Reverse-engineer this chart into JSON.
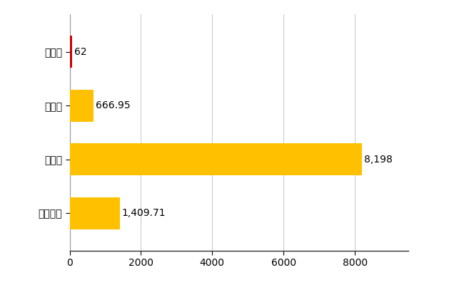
{
  "categories": [
    "全国平均",
    "県最大",
    "県平均",
    "小川村"
  ],
  "values": [
    1409.71,
    8198,
    666.95,
    62
  ],
  "bar_colors": [
    "#FFC000",
    "#FFC000",
    "#FFC000",
    "#CC0000"
  ],
  "value_labels": [
    "1,409.71",
    "8,198",
    "666.95",
    "62"
  ],
  "xlim": [
    0,
    9500
  ],
  "xticks": [
    0,
    2000,
    4000,
    6000,
    8000
  ],
  "xtick_labels": [
    "0",
    "2000",
    "4000",
    "6000",
    "8000"
  ],
  "background_color": "#FFFFFF",
  "grid_color": "#CCCCCC",
  "label_fontsize": 11,
  "tick_fontsize": 10,
  "bar_height": 0.6,
  "figsize": [
    6.5,
    4.0
  ],
  "dpi": 100
}
